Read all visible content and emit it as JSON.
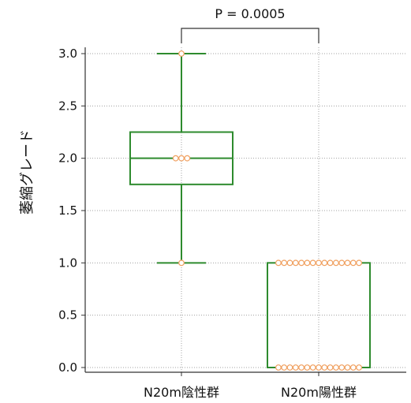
{
  "chart_data": {
    "type": "box",
    "ylabel": "萎縮グレード",
    "ylim": [
      0.0,
      3.0
    ],
    "yticks": [
      "0.0",
      "0.5",
      "1.0",
      "1.5",
      "2.0",
      "2.5",
      "3.0"
    ],
    "ytick_values": [
      0.0,
      0.5,
      1.0,
      1.5,
      2.0,
      2.5,
      3.0
    ],
    "categories": [
      "N20m陰性群",
      "N20m陽性群"
    ],
    "grid": true,
    "boxes": [
      {
        "category": "N20m陰性群",
        "min": 1.0,
        "q1": 1.75,
        "median": 2.0,
        "q3": 2.25,
        "max": 3.0
      },
      {
        "category": "N20m陽性群",
        "min": 0.0,
        "q1": 0.0,
        "median": 0.0,
        "q3": 1.0,
        "max": 1.0
      }
    ],
    "points": [
      {
        "category": "N20m陰性群",
        "values": [
          3.0,
          2.0,
          2.0,
          2.0,
          1.0
        ]
      },
      {
        "category": "N20m陽性群",
        "values": [
          1.0,
          1.0,
          1.0,
          1.0,
          1.0,
          1.0,
          1.0,
          1.0,
          1.0,
          1.0,
          1.0,
          1.0,
          1.0,
          1.0,
          1.0,
          0.0,
          0.0,
          0.0,
          0.0,
          0.0,
          0.0,
          0.0,
          0.0,
          0.0,
          0.0,
          0.0,
          0.0,
          0.0,
          0.0,
          0.0
        ]
      }
    ],
    "annotation": {
      "text": "P = 0.0005",
      "between": [
        "N20m陰性群",
        "N20m陽性群"
      ]
    },
    "colors": {
      "box": "#2e8b2e",
      "point_edge": "#f0a060",
      "point_fill": "#ffffff",
      "grid": "#a0a0a0",
      "axis": "#333333"
    }
  }
}
